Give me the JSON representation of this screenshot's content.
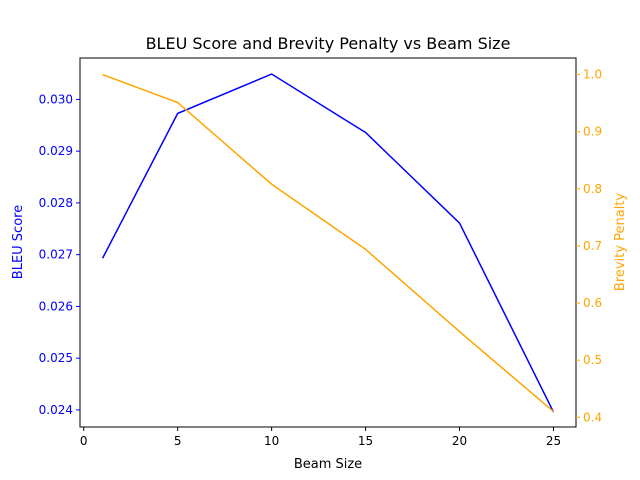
{
  "chart_data": {
    "type": "line",
    "title": "BLEU Score and Brevity Penalty vs Beam Size",
    "xlabel": "Beam Size",
    "ylabel_left": "BLEU Score",
    "ylabel_right": "Brevity Penalty",
    "x": [
      1,
      5,
      10,
      15,
      20,
      25
    ],
    "xlim": [
      -0.2,
      26.2
    ],
    "xticks": [
      0,
      5,
      10,
      15,
      20,
      25
    ],
    "grid": false,
    "series": [
      {
        "axis": "left",
        "color": "#0000ff",
        "values": [
          0.02693,
          0.02973,
          0.03049,
          0.02936,
          0.02761,
          0.02396
        ]
      },
      {
        "axis": "right",
        "color": "#ffa500",
        "values": [
          1.0,
          0.951,
          0.808,
          0.694,
          0.55,
          0.41
        ]
      }
    ],
    "ylim_left": [
      0.02367,
      0.0308
    ],
    "yticks_left": [
      "0.024",
      "0.025",
      "0.026",
      "0.027",
      "0.028",
      "0.029",
      "0.030"
    ],
    "ylim_right": [
      0.383,
      1.029
    ],
    "yticks_right": [
      "0.4",
      "0.5",
      "0.6",
      "0.7",
      "0.8",
      "0.9",
      "1.0"
    ]
  }
}
